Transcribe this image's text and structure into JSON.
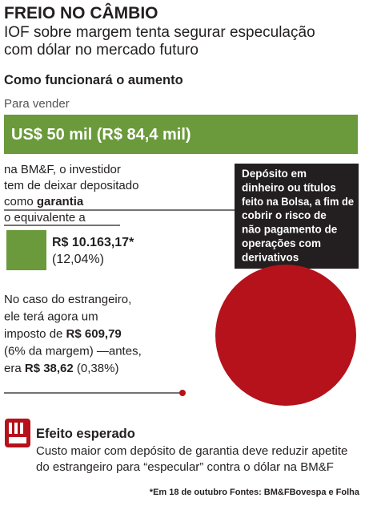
{
  "title": "FREIO NO CÂMBIO",
  "subtitle": [
    "IOF sobre margem tenta segurar especulação",
    "com dólar no mercado futuro"
  ],
  "section_title": "Como funcionará o aumento",
  "intro": "Para vender",
  "highlight": "US$ 50 mil (R$ 84,4 mil)",
  "deposit": {
    "lines": [
      [
        {
          "text": "na BM&F, o investidor"
        }
      ],
      [
        {
          "text": "tem de deixar depositado"
        }
      ],
      [
        {
          "text": "como "
        },
        {
          "text": "garantia",
          "bold": true
        }
      ],
      [
        {
          "text": "o equivalente a"
        }
      ]
    ],
    "amount": [
      "R$ 10.163,17*",
      "(12,04%)"
    ]
  },
  "definition": [
    "Depósito em",
    "dinheiro ou títulos",
    "feito na Bolsa, a fim de",
    "cobrir o risco de",
    "não pagamento de",
    "operações com",
    "derivativos"
  ],
  "foreign": {
    "lines": [
      [
        {
          "text": "No caso do estrangeiro,"
        }
      ],
      [
        {
          "text": "ele terá agora um"
        }
      ],
      [
        {
          "text": "imposto de "
        },
        {
          "text": "R$ 609,79",
          "bold": true
        }
      ],
      [
        {
          "text": "(6% da margem) —antes,"
        }
      ],
      [
        {
          "text": "era "
        },
        {
          "text": "R$ 38,62",
          "bold": true
        },
        {
          "text": " (0,38%)"
        }
      ]
    ]
  },
  "effect": {
    "title": "Efeito esperado",
    "text": [
      "Custo maior com depósito de garantia deve reduzir apetite",
      "do estrangeiro para “especular” contra o dólar na BM&F"
    ]
  },
  "footnote": "*Em 18 de outubro Fontes: BM&FBovespa e Folha"
}
